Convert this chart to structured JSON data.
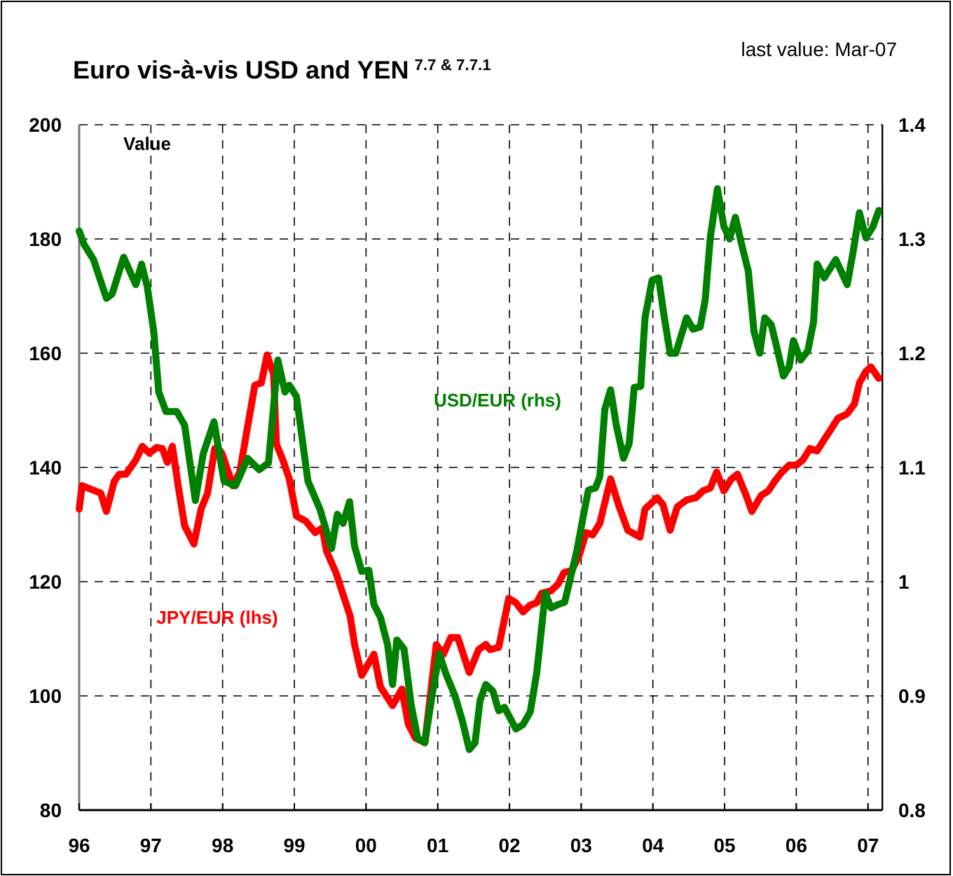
{
  "chart_data": {
    "type": "line",
    "title": "Euro vis-à-vis USD and YEN$^{7.7 & 7.7.1}$",
    "ylabel": "Value",
    "annotations": [
      "last value: Mar-07"
    ],
    "xlim": [
      1996,
      2007.2
    ],
    "xticks": [
      {
        "value": 1996,
        "label": "96"
      },
      {
        "value": 1997,
        "label": "97"
      },
      {
        "value": 1998,
        "label": "98"
      },
      {
        "value": 1999,
        "label": "99"
      },
      {
        "value": 2000,
        "label": "00"
      },
      {
        "value": 2001,
        "label": "01"
      },
      {
        "value": 2002,
        "label": "02"
      },
      {
        "value": 2003,
        "label": "03"
      },
      {
        "value": 2004,
        "label": "04"
      },
      {
        "value": 2005,
        "label": "05"
      },
      {
        "value": 2006,
        "label": "06"
      },
      {
        "value": 2007,
        "label": "07"
      }
    ],
    "ylim": [
      80,
      200
    ],
    "yticks": [
      80,
      100,
      120,
      140,
      160,
      180,
      200
    ],
    "y2lim": [
      0.8,
      1.4
    ],
    "y2ticks": [
      0.8,
      0.9,
      1,
      1.1,
      1.2,
      1.3,
      1.4
    ],
    "grid": true,
    "legend": false,
    "marker": "none",
    "line_style": "solid",
    "series": [
      {
        "name": "JPY/EUR (lhs)",
        "color": "#ff0000",
        "axis": "y",
        "x": [
          1996.0,
          1996.04,
          1996.2,
          1996.3,
          1996.38,
          1996.49,
          1996.56,
          1996.65,
          1996.79,
          1996.88,
          1996.98,
          1997.08,
          1997.16,
          1997.23,
          1997.3,
          1997.38,
          1997.47,
          1997.6,
          1997.7,
          1997.79,
          1997.89,
          1997.99,
          1998.09,
          1998.14,
          1998.24,
          1998.33,
          1998.45,
          1998.54,
          1998.62,
          1998.71,
          1998.75,
          1998.84,
          1998.93,
          1999.03,
          1999.16,
          1999.29,
          1999.39,
          1999.45,
          1999.58,
          1999.78,
          1999.84,
          1999.94,
          2000.11,
          2000.2,
          2000.37,
          2000.5,
          2000.59,
          2000.69,
          2000.82,
          2000.98,
          2001.08,
          2001.18,
          2001.28,
          2001.44,
          2001.57,
          2001.67,
          2001.73,
          2001.85,
          2001.99,
          2002.09,
          2002.19,
          2002.29,
          2002.38,
          2002.45,
          2002.58,
          2002.68,
          2002.76,
          2002.87,
          2002.97,
          2003.07,
          2003.16,
          2003.26,
          2003.41,
          2003.52,
          2003.65,
          2003.82,
          2003.89,
          2004.06,
          2004.14,
          2004.24,
          2004.34,
          2004.47,
          2004.6,
          2004.7,
          2004.8,
          2004.89,
          2004.99,
          2005.09,
          2005.18,
          2005.3,
          2005.38,
          2005.51,
          2005.61,
          2005.7,
          2005.8,
          2005.9,
          2006.0,
          2006.09,
          2006.19,
          2006.29,
          2006.39,
          2006.48,
          2006.58,
          2006.71,
          2006.81,
          2006.88,
          2006.97,
          2007.04,
          2007.15
        ],
        "values": [
          132.7,
          136.8,
          136.0,
          135.5,
          132.3,
          137.6,
          138.8,
          138.8,
          141.3,
          143.7,
          142.5,
          143.5,
          143.3,
          140.9,
          143.7,
          136.8,
          129.8,
          126.6,
          132.7,
          135.5,
          143.3,
          142.5,
          138.8,
          136.8,
          139.2,
          145.8,
          154.4,
          154.8,
          159.7,
          156.4,
          144.1,
          141.3,
          138.0,
          131.5,
          130.6,
          128.6,
          129.4,
          125.3,
          121.6,
          113.9,
          109.0,
          103.6,
          107.3,
          101.6,
          98.3,
          101.2,
          95.0,
          92.6,
          91.8,
          109.0,
          107.3,
          110.2,
          110.2,
          104.1,
          108.1,
          109.0,
          108.1,
          108.5,
          117.1,
          116.3,
          114.7,
          115.9,
          116.3,
          118.0,
          118.4,
          119.6,
          121.6,
          122.0,
          124.5,
          128.6,
          128.2,
          130.2,
          138.0,
          133.5,
          129.0,
          127.8,
          132.7,
          134.7,
          133.5,
          129.0,
          133.1,
          134.3,
          134.7,
          135.9,
          136.4,
          139.2,
          135.9,
          137.9,
          138.8,
          135.1,
          132.3,
          135.1,
          135.9,
          137.6,
          139.2,
          140.4,
          140.4,
          141.3,
          143.3,
          142.9,
          144.9,
          146.6,
          148.6,
          149.4,
          151.1,
          154.8,
          156.8,
          157.6,
          155.6
        ]
      },
      {
        "name": "USD/EUR (rhs)",
        "color": "#008000",
        "axis": "y2",
        "x": [
          1996.0,
          1996.07,
          1996.2,
          1996.38,
          1996.46,
          1996.62,
          1996.79,
          1996.87,
          1996.95,
          1997.04,
          1997.11,
          1997.21,
          1997.36,
          1997.47,
          1997.62,
          1997.73,
          1997.88,
          1998.02,
          1998.18,
          1998.35,
          1998.51,
          1998.64,
          1998.77,
          1998.87,
          1998.93,
          1999.03,
          1999.19,
          1999.36,
          1999.52,
          1999.6,
          1999.68,
          1999.77,
          1999.84,
          1999.94,
          2000.04,
          2000.11,
          2000.2,
          2000.3,
          2000.37,
          2000.43,
          2000.53,
          2000.63,
          2000.72,
          2000.82,
          2000.92,
          2001.02,
          2001.11,
          2001.24,
          2001.34,
          2001.44,
          2001.52,
          2001.59,
          2001.67,
          2001.77,
          2001.85,
          2001.93,
          2002.09,
          2002.19,
          2002.29,
          2002.38,
          2002.5,
          2002.58,
          2002.68,
          2002.77,
          2002.94,
          2003.04,
          2003.1,
          2003.2,
          2003.26,
          2003.33,
          2003.41,
          2003.49,
          2003.59,
          2003.67,
          2003.74,
          2003.83,
          2003.89,
          2003.99,
          2004.08,
          2004.15,
          2004.24,
          2004.32,
          2004.47,
          2004.56,
          2004.66,
          2004.73,
          2004.8,
          2004.9,
          2004.99,
          2005.07,
          2005.15,
          2005.25,
          2005.33,
          2005.41,
          2005.49,
          2005.56,
          2005.65,
          2005.74,
          2005.82,
          2005.9,
          2005.96,
          2006.06,
          2006.16,
          2006.24,
          2006.29,
          2006.39,
          2006.55,
          2006.71,
          2006.79,
          2006.88,
          2006.97,
          2007.07,
          2007.15
        ],
        "values": [
          1.307,
          1.295,
          1.282,
          1.248,
          1.252,
          1.284,
          1.26,
          1.278,
          1.258,
          1.219,
          1.166,
          1.149,
          1.149,
          1.137,
          1.071,
          1.112,
          1.14,
          1.088,
          1.084,
          1.108,
          1.098,
          1.104,
          1.194,
          1.166,
          1.172,
          1.162,
          1.088,
          1.063,
          1.029,
          1.059,
          1.051,
          1.07,
          1.031,
          1.009,
          1.01,
          0.98,
          0.969,
          0.945,
          0.91,
          0.949,
          0.941,
          0.892,
          0.863,
          0.859,
          0.9,
          0.937,
          0.92,
          0.9,
          0.879,
          0.853,
          0.859,
          0.896,
          0.91,
          0.904,
          0.887,
          0.89,
          0.871,
          0.875,
          0.886,
          0.92,
          0.99,
          0.977,
          0.98,
          0.982,
          1.027,
          1.061,
          1.08,
          1.082,
          1.092,
          1.151,
          1.168,
          1.137,
          1.108,
          1.121,
          1.17,
          1.171,
          1.231,
          1.264,
          1.266,
          1.235,
          1.2,
          1.2,
          1.231,
          1.221,
          1.223,
          1.247,
          1.301,
          1.344,
          1.311,
          1.3,
          1.319,
          1.292,
          1.272,
          1.219,
          1.2,
          1.231,
          1.225,
          1.202,
          1.18,
          1.188,
          1.211,
          1.194,
          1.202,
          1.227,
          1.278,
          1.266,
          1.282,
          1.26,
          1.288,
          1.323,
          1.301,
          1.311,
          1.325
        ]
      }
    ]
  }
}
